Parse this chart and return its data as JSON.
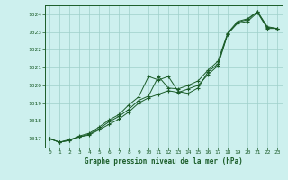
{
  "title": "Graphe pression niveau de la mer (hPa)",
  "bg_color": "#cdf0ee",
  "grid_color": "#9ecfca",
  "line_color": "#1a5c28",
  "xlim": [
    -0.5,
    23.5
  ],
  "ylim": [
    1016.5,
    1024.5
  ],
  "yticks": [
    1017,
    1018,
    1019,
    1020,
    1021,
    1022,
    1023,
    1024
  ],
  "xticks": [
    0,
    1,
    2,
    3,
    4,
    5,
    6,
    7,
    8,
    9,
    10,
    11,
    12,
    13,
    14,
    15,
    16,
    17,
    18,
    19,
    20,
    21,
    22,
    23
  ],
  "line1": [
    1017.0,
    1016.8,
    1016.9,
    1017.1,
    1017.2,
    1017.5,
    1017.8,
    1018.1,
    1018.5,
    1019.0,
    1019.3,
    1019.5,
    1019.7,
    1019.6,
    1019.8,
    1020.0,
    1020.6,
    1021.1,
    1022.9,
    1023.5,
    1023.6,
    1024.1,
    1023.2,
    1023.2
  ],
  "line2": [
    1017.0,
    1016.8,
    1016.9,
    1017.15,
    1017.3,
    1017.65,
    1018.05,
    1018.35,
    1018.9,
    1019.35,
    1020.5,
    1020.3,
    1020.5,
    1019.65,
    1019.55,
    1019.85,
    1020.75,
    1021.2,
    1022.9,
    1023.55,
    1023.7,
    1024.15,
    1023.3,
    1023.2
  ],
  "line3": [
    1017.0,
    1016.8,
    1016.95,
    1017.1,
    1017.25,
    1017.55,
    1017.95,
    1018.25,
    1018.65,
    1019.15,
    1019.4,
    1020.5,
    1019.85,
    1019.8,
    1020.0,
    1020.25,
    1020.85,
    1021.35,
    1022.95,
    1023.6,
    1023.75,
    1024.15,
    1023.25,
    1023.2
  ]
}
